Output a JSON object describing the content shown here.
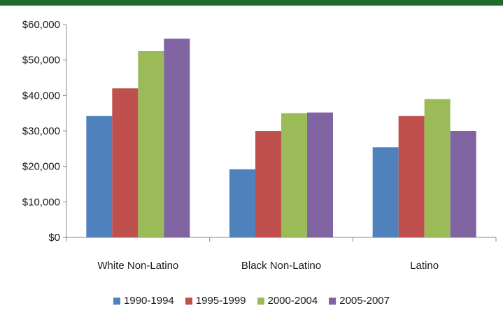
{
  "chart_data": {
    "type": "bar",
    "categories": [
      "White Non-Latino",
      "Black Non-Latino",
      "Latino"
    ],
    "series": [
      {
        "name": "1990-1994",
        "color": "#4f81bd",
        "values": [
          34200,
          19200,
          25400
        ]
      },
      {
        "name": "1995-1999",
        "color": "#c0504d",
        "values": [
          42000,
          30000,
          34200
        ]
      },
      {
        "name": "2000-2004",
        "color": "#9bbb59",
        "values": [
          52500,
          35000,
          39000
        ]
      },
      {
        "name": "2005-2007",
        "color": "#8064a2",
        "values": [
          56000,
          35200,
          30000
        ]
      }
    ],
    "y_ticks": [
      "$0",
      "$10,000",
      "$20,000",
      "$30,000",
      "$40,000",
      "$50,000",
      "$60,000"
    ],
    "ylim": [
      0,
      60000
    ],
    "grid": false,
    "legend_position": "bottom"
  }
}
